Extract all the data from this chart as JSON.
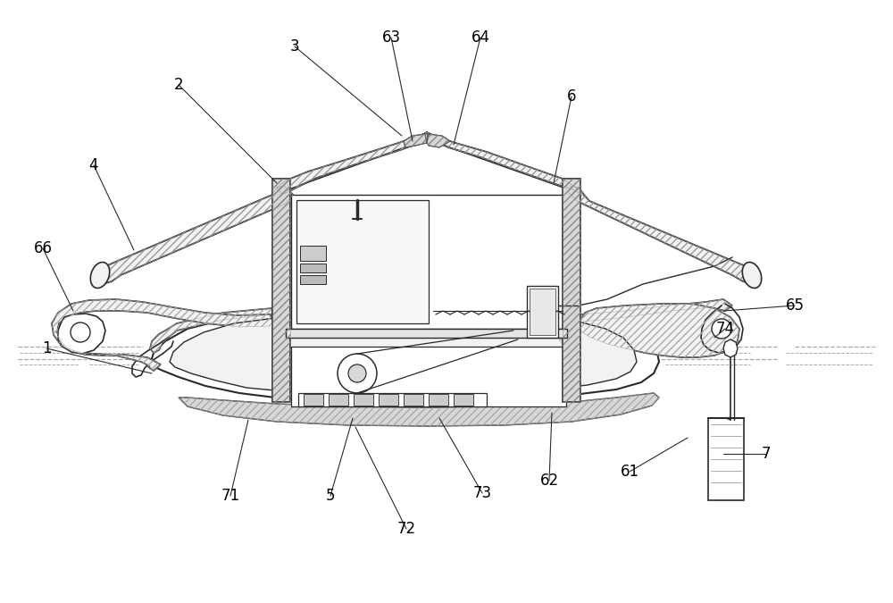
{
  "bg_color": "#ffffff",
  "lc": "#2a2a2a",
  "figsize": [
    10.0,
    6.75
  ],
  "dpi": 100,
  "water_dash": "#999999",
  "hatch_lc": "#888888",
  "gray_fill": "#d8d8d8",
  "light_fill": "#f2f2f2",
  "annotations": [
    [
      "1",
      170,
      418,
      52,
      390
    ],
    [
      "2",
      310,
      205,
      200,
      95
    ],
    [
      "3",
      450,
      152,
      330,
      52
    ],
    [
      "4",
      150,
      280,
      105,
      185
    ],
    [
      "5",
      395,
      468,
      370,
      555
    ],
    [
      "6",
      620,
      205,
      640,
      108
    ],
    [
      "7",
      810,
      508,
      858,
      508
    ],
    [
      "61",
      770,
      490,
      705,
      528
    ],
    [
      "62",
      618,
      462,
      615,
      538
    ],
    [
      "63",
      462,
      158,
      438,
      42
    ],
    [
      "64",
      508,
      162,
      538,
      42
    ],
    [
      "65",
      810,
      348,
      890,
      342
    ],
    [
      "66",
      82,
      348,
      48,
      278
    ],
    [
      "71",
      278,
      470,
      258,
      555
    ],
    [
      "72",
      398,
      478,
      455,
      592
    ],
    [
      "73",
      492,
      468,
      540,
      552
    ],
    [
      "74",
      800,
      378,
      812,
      368
    ]
  ]
}
